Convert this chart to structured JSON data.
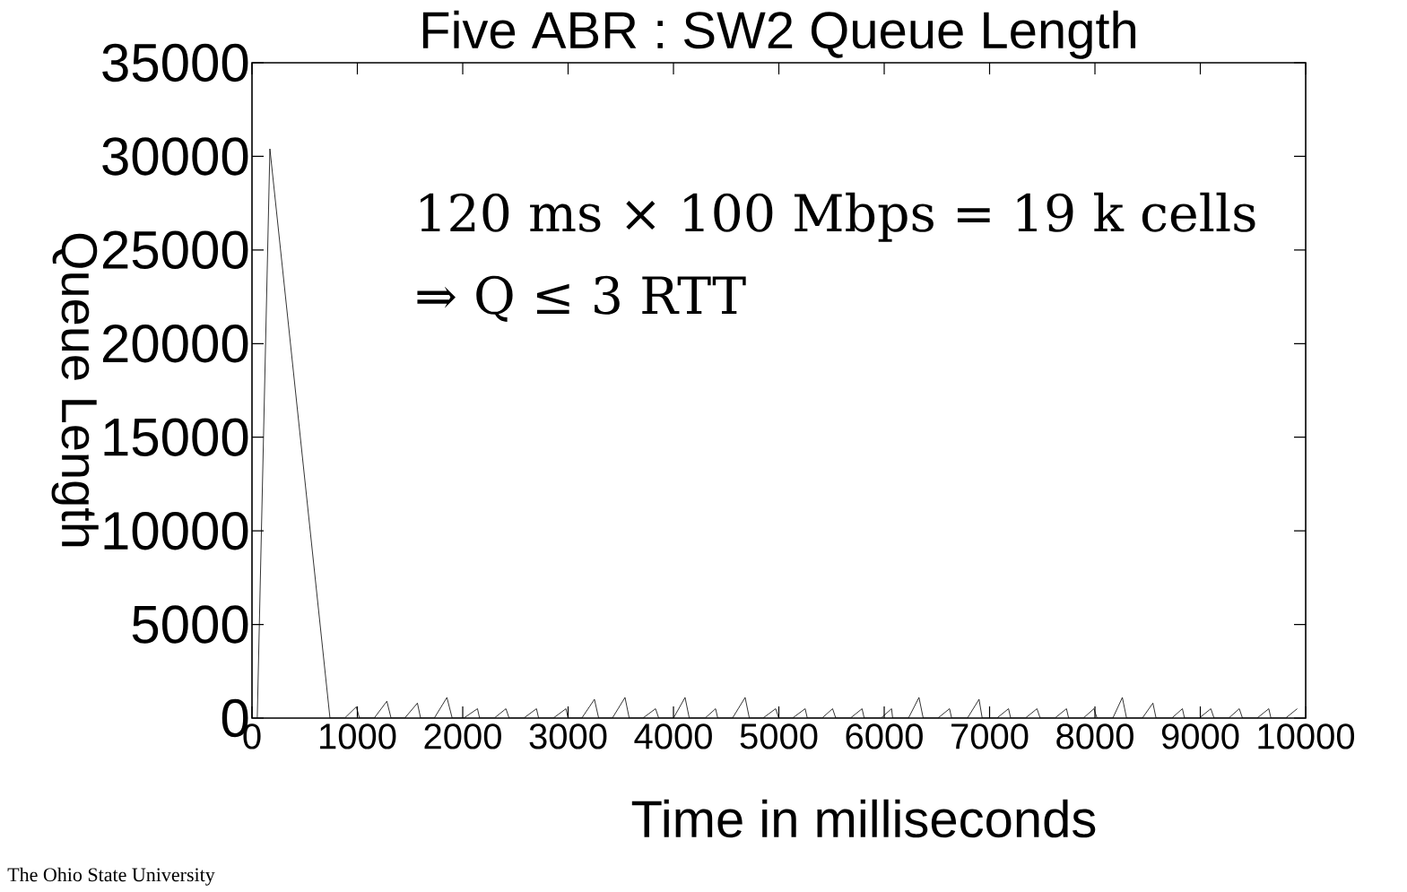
{
  "chart_data": {
    "type": "line",
    "title": "Five ABR : SW2 Queue Length",
    "xlabel": "Time in milliseconds",
    "ylabel": "Queue Length",
    "annotations": [
      "120 ms × 100 Mbps = 19 k cells",
      "⇒ Q  ≤ 3 RTT",
      "The Ohio State University"
    ],
    "xlim": [
      0,
      10000
    ],
    "ylim": [
      0,
      35000
    ],
    "xticks": [
      0,
      1000,
      2000,
      3000,
      4000,
      5000,
      6000,
      7000,
      8000,
      9000,
      10000
    ],
    "yticks": [
      0,
      5000,
      10000,
      15000,
      20000,
      25000,
      30000,
      35000
    ],
    "color": "#000000",
    "x": [
      50,
      170,
      740,
      880,
      990,
      1020,
      1160,
      1280,
      1320,
      1450,
      1570,
      1600,
      1730,
      1850,
      1900,
      2010,
      2140,
      2160,
      2300,
      2410,
      2440,
      2580,
      2700,
      2720,
      2860,
      2980,
      3000,
      3130,
      3250,
      3290,
      3420,
      3540,
      3580,
      3710,
      3830,
      3860,
      4000,
      4110,
      4150,
      4300,
      4400,
      4420,
      4560,
      4680,
      4720,
      4850,
      4970,
      5000,
      5130,
      5250,
      5270,
      5410,
      5510,
      5540,
      5680,
      5790,
      5810,
      5970,
      6070,
      6080,
      6230,
      6330,
      6370,
      6510,
      6620,
      6640,
      6790,
      6900,
      6930,
      7070,
      7180,
      7200,
      7340,
      7450,
      7480,
      7620,
      7730,
      7750,
      7890,
      7990,
      8020,
      8170,
      8260,
      8300,
      8450,
      8550,
      8580,
      8730,
      8830,
      8850,
      8990,
      9100,
      9130,
      9270,
      9370,
      9400,
      9540,
      9650,
      9670,
      9810,
      9920
    ],
    "values": [
      0,
      30400,
      0,
      0,
      600,
      0,
      0,
      900,
      0,
      0,
      800,
      0,
      0,
      1100,
      0,
      0,
      500,
      0,
      0,
      500,
      0,
      0,
      500,
      0,
      0,
      500,
      0,
      0,
      1000,
      0,
      0,
      1100,
      0,
      0,
      500,
      0,
      0,
      1100,
      0,
      0,
      500,
      0,
      0,
      1100,
      0,
      0,
      500,
      0,
      0,
      500,
      0,
      0,
      500,
      0,
      0,
      500,
      0,
      0,
      500,
      0,
      0,
      1100,
      0,
      0,
      500,
      0,
      0,
      1000,
      0,
      0,
      500,
      0,
      0,
      500,
      0,
      0,
      500,
      0,
      0,
      500,
      0,
      0,
      1100,
      0,
      0,
      800,
      0,
      0,
      500,
      0,
      0,
      500,
      0,
      0,
      500,
      0,
      0,
      500,
      0,
      0,
      500
    ]
  }
}
